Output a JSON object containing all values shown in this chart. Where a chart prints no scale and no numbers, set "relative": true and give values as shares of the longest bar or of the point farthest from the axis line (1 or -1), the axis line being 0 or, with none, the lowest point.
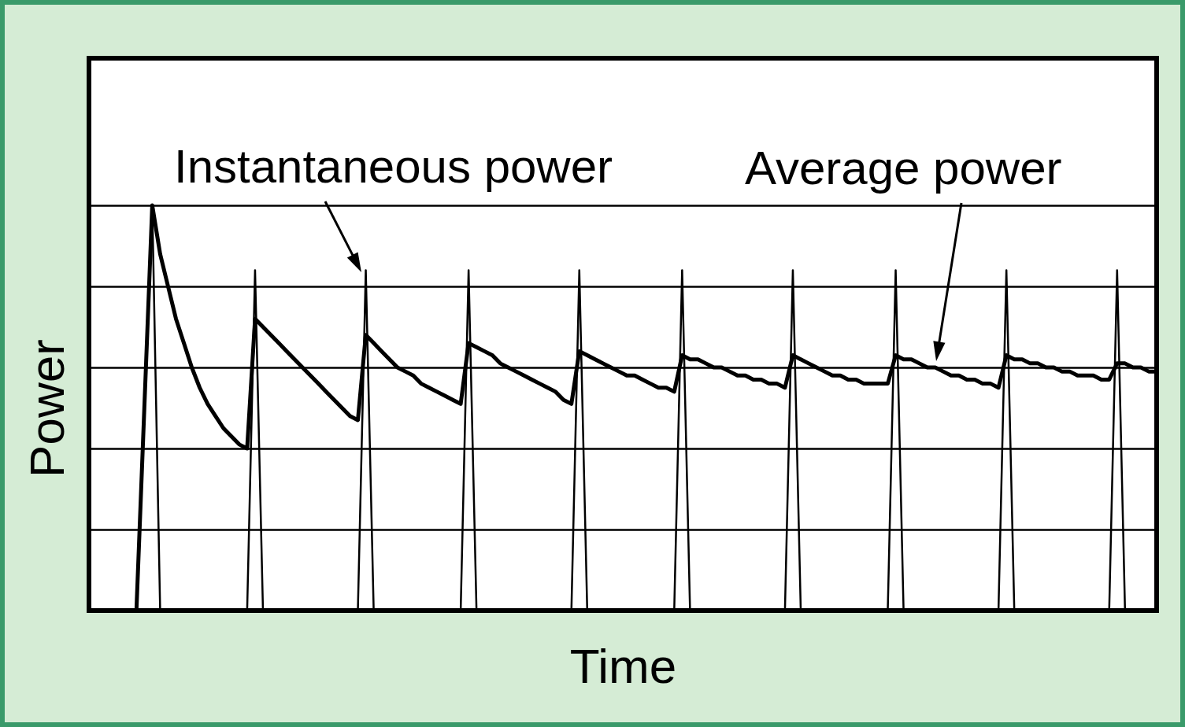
{
  "chart_data": {
    "type": "line",
    "xlabel": "Time",
    "ylabel": "Power",
    "relative": true,
    "grid": "y",
    "marker": "none",
    "line_style": "solid",
    "categories": [
      null,
      null,
      null,
      null,
      null,
      null,
      null,
      null,
      null,
      null,
      null,
      null,
      null,
      null,
      null,
      null,
      null,
      null,
      null,
      null,
      null,
      null,
      null,
      null,
      null,
      null,
      null,
      null,
      null,
      null,
      null,
      null,
      null,
      null,
      null,
      null,
      null,
      null,
      null,
      null,
      null,
      null,
      null,
      null,
      null,
      null,
      null,
      null,
      null,
      null,
      null,
      null,
      null,
      null,
      null,
      null,
      null,
      null,
      null,
      null,
      null,
      null,
      null,
      null,
      null,
      null,
      null,
      null,
      null,
      null,
      null,
      null,
      null,
      null,
      null,
      null,
      null,
      null,
      null,
      null,
      null,
      null,
      null,
      null,
      null,
      null,
      null,
      null,
      null,
      null,
      null,
      null,
      null,
      null,
      null,
      null,
      null,
      null,
      null,
      null,
      null,
      null,
      null,
      null,
      null,
      null,
      null,
      null,
      null,
      null,
      null,
      null,
      null,
      null,
      null,
      null,
      null,
      null,
      null,
      null,
      null,
      null,
      null,
      null,
      null,
      null,
      null,
      null,
      null,
      null,
      null,
      null,
      null,
      null,
      null,
      null
    ],
    "series": [
      {
        "name": "Instantaneous power",
        "color": "#000000",
        "values": [
          0,
          0,
          0,
          0,
          0,
          0,
          0,
          0.5,
          1,
          0,
          0,
          0,
          0,
          0,
          0,
          0,
          0,
          0,
          0,
          0,
          0,
          0.84,
          0,
          0,
          0,
          0,
          0,
          0,
          0,
          0,
          0,
          0,
          0,
          0,
          0,
          0.84,
          0,
          0,
          0,
          0,
          0,
          0,
          0,
          0,
          0,
          0,
          0,
          0,
          0.84,
          0,
          0,
          0,
          0,
          0,
          0,
          0,
          0,
          0,
          0,
          0,
          0,
          0,
          0.84,
          0,
          0,
          0,
          0,
          0,
          0,
          0,
          0,
          0,
          0,
          0,
          0,
          0.84,
          0,
          0,
          0,
          0,
          0,
          0,
          0,
          0,
          0,
          0,
          0,
          0,
          0,
          0.84,
          0,
          0,
          0,
          0,
          0,
          0,
          0,
          0,
          0,
          0,
          0,
          0,
          0.84,
          0,
          0,
          0,
          0,
          0,
          0,
          0,
          0,
          0,
          0,
          0,
          0,
          0,
          0.84,
          0,
          0,
          0,
          0,
          0,
          0,
          0,
          0,
          0,
          0,
          0,
          0,
          0,
          0.84,
          0,
          0,
          0,
          0,
          0
        ]
      },
      {
        "name": "Average power",
        "color": "#000000",
        "values": [
          0,
          0,
          0,
          0,
          0,
          0,
          0,
          0.5,
          1,
          0.88,
          0.8,
          0.72,
          0.66,
          0.6,
          0.55,
          0.51,
          0.48,
          0.45,
          0.43,
          0.41,
          0.4,
          0.72,
          0.7,
          0.68,
          0.66,
          0.64,
          0.62,
          0.6,
          0.58,
          0.56,
          0.54,
          0.52,
          0.5,
          0.48,
          0.47,
          0.68,
          0.66,
          0.64,
          0.62,
          0.6,
          0.59,
          0.58,
          0.56,
          0.55,
          0.54,
          0.53,
          0.52,
          0.51,
          0.66,
          0.65,
          0.64,
          0.63,
          0.61,
          0.6,
          0.59,
          0.58,
          0.57,
          0.56,
          0.55,
          0.54,
          0.52,
          0.51,
          0.64,
          0.63,
          0.62,
          0.61,
          0.6,
          0.59,
          0.58,
          0.58,
          0.57,
          0.56,
          0.55,
          0.55,
          0.54,
          0.63,
          0.62,
          0.62,
          0.61,
          0.6,
          0.6,
          0.59,
          0.58,
          0.58,
          0.57,
          0.57,
          0.56,
          0.56,
          0.55,
          0.63,
          0.62,
          0.61,
          0.6,
          0.59,
          0.58,
          0.58,
          0.57,
          0.57,
          0.56,
          0.56,
          0.56,
          0.56,
          0.63,
          0.62,
          0.62,
          0.61,
          0.6,
          0.6,
          0.59,
          0.58,
          0.58,
          0.57,
          0.57,
          0.56,
          0.56,
          0.55,
          0.63,
          0.62,
          0.62,
          0.61,
          0.61,
          0.6,
          0.6,
          0.59,
          0.59,
          0.58,
          0.58,
          0.58,
          0.57,
          0.57,
          0.61,
          0.61,
          0.6,
          0.6,
          0.59,
          0.59
        ]
      }
    ]
  }
}
